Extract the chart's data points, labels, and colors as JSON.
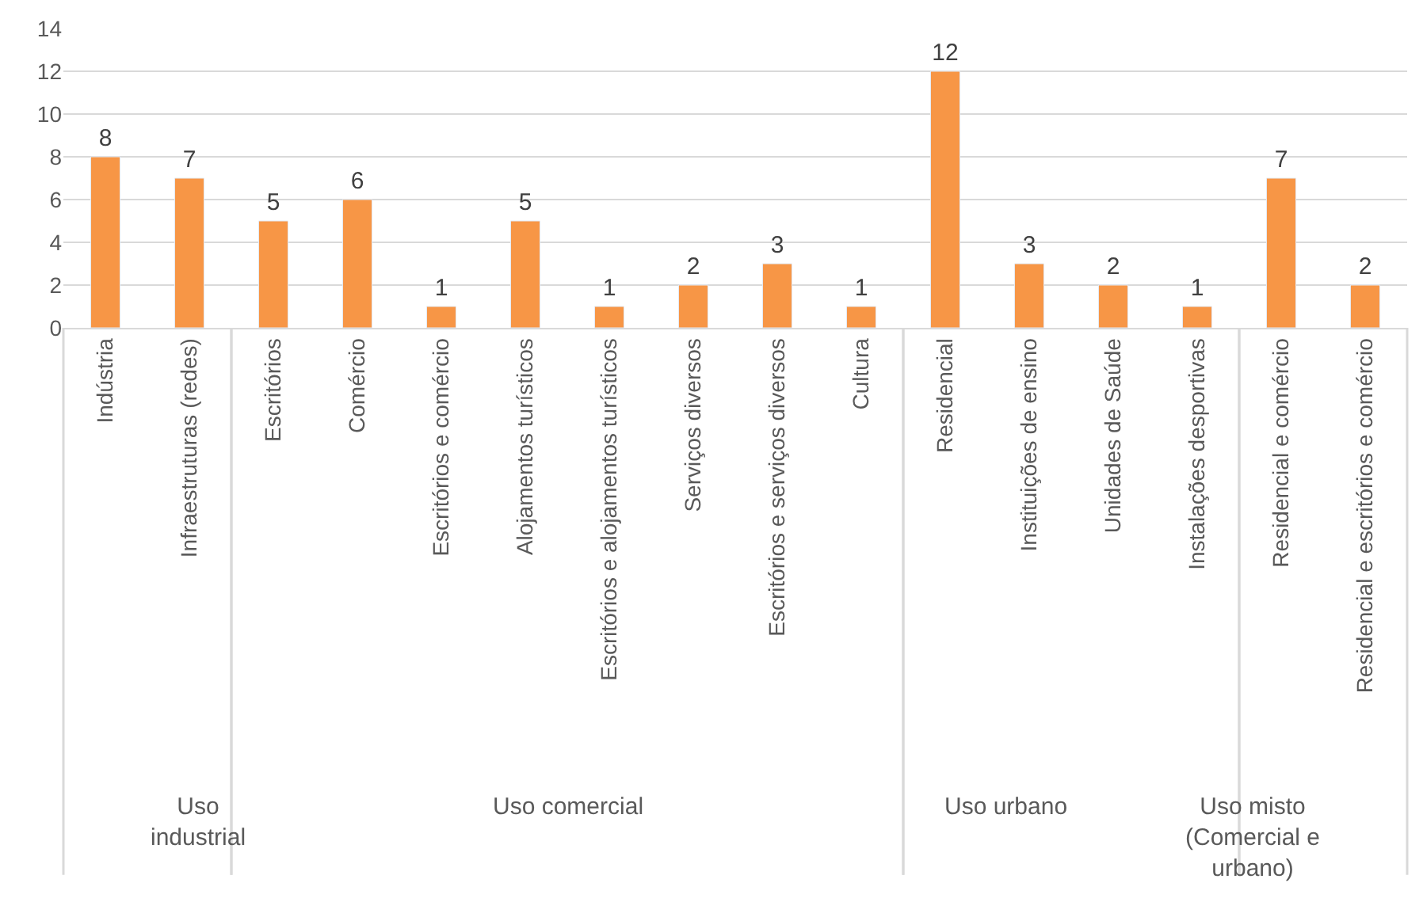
{
  "chart_data": [
    {
      "type": "bar",
      "xlabel": "Uso industrial",
      "categories": [
        "Indústria",
        "Infraestruturas (redes)"
      ],
      "values": [
        8,
        7
      ],
      "color": "#f79646",
      "ylim": [
        0,
        14
      ],
      "yticks": [
        0,
        2,
        4,
        6,
        8,
        10,
        12,
        14
      ],
      "grid": "y",
      "data_labels": true
    },
    {
      "type": "bar",
      "xlabel": "Uso comercial",
      "categories": [
        "Escritórios",
        "Comércio",
        "Escritórios e comércio",
        "Alojamentos turísticos",
        "Escritórios e alojamentos turísticos",
        "Serviços diversos",
        "Escritórios e serviços diversos",
        "Cultura"
      ],
      "values": [
        5,
        6,
        1,
        5,
        1,
        2,
        3,
        1
      ],
      "color": "#f79646",
      "ylim": [
        0,
        14
      ],
      "yticks": [
        0,
        2,
        4,
        6,
        8,
        10,
        12,
        14
      ],
      "grid": "y",
      "data_labels": true,
      "tick_labels": "x"
    },
    {
      "type": "bar",
      "xlabel": "Uso urbano",
      "categories": [
        "Residencial",
        "Instituições de ensino",
        "Unidades de Saúde",
        "Instalações desportivas"
      ],
      "values": [
        12,
        3,
        2,
        1
      ],
      "color": "#f79646",
      "ylim": [
        0,
        14
      ],
      "yticks": [
        0,
        2,
        4,
        6,
        8,
        10,
        12,
        14
      ],
      "grid": "y",
      "data_labels": true,
      "tick_labels": "x"
    },
    {
      "type": "bar",
      "xlabel": "Uso misto (Comercial e urbano)",
      "categories": [
        "Residencial e comércio",
        "Residencial e escritórios e comércio"
      ],
      "values": [
        7,
        2
      ],
      "color": "#f79646",
      "ylim": [
        0,
        14
      ],
      "yticks": [
        0,
        2,
        4,
        6,
        8,
        10,
        12,
        14
      ],
      "grid": "y",
      "data_labels": true,
      "tick_labels": "x"
    }
  ]
}
